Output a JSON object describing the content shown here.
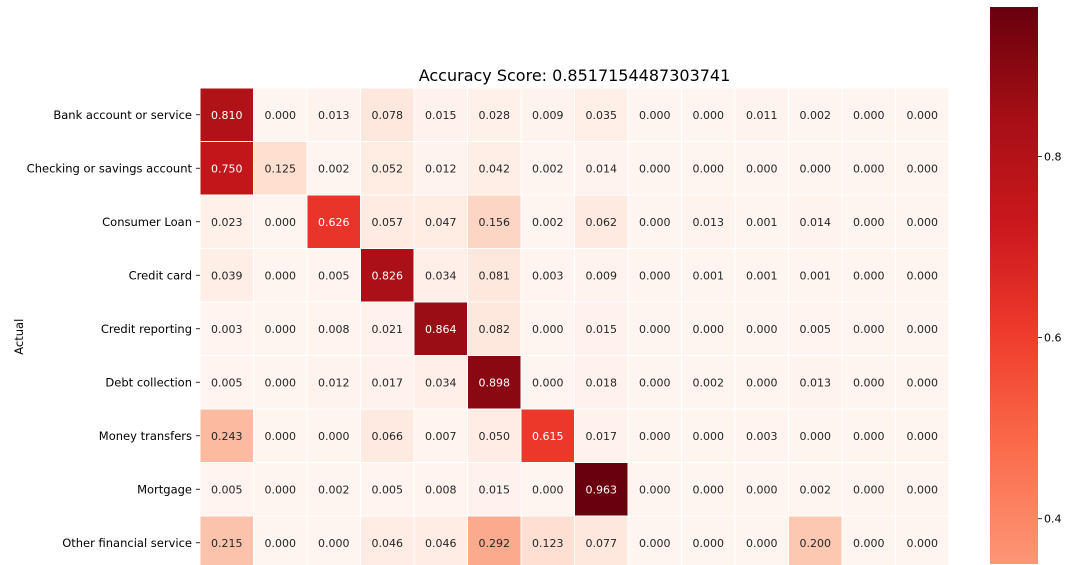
{
  "chart_data": {
    "type": "heatmap",
    "title": "Accuracy Score: 0.8517154487303741",
    "ylabel": "Actual",
    "xlabel": "",
    "row_labels": [
      "Bank account or service",
      "Checking or savings account",
      "Consumer Loan",
      "Credit card",
      "Credit reporting",
      "Debt collection",
      "Money transfers",
      "Mortgage",
      "Other financial service"
    ],
    "values": [
      [
        0.81,
        0.0,
        0.013,
        0.078,
        0.015,
        0.028,
        0.009,
        0.035,
        0.0,
        0.0,
        0.011,
        0.002,
        0.0,
        0.0
      ],
      [
        0.75,
        0.125,
        0.002,
        0.052,
        0.012,
        0.042,
        0.002,
        0.014,
        0.0,
        0.0,
        0.0,
        0.0,
        0.0,
        0.0
      ],
      [
        0.023,
        0.0,
        0.626,
        0.057,
        0.047,
        0.156,
        0.002,
        0.062,
        0.0,
        0.013,
        0.001,
        0.014,
        0.0,
        0.0
      ],
      [
        0.039,
        0.0,
        0.005,
        0.826,
        0.034,
        0.081,
        0.003,
        0.009,
        0.0,
        0.001,
        0.001,
        0.001,
        0.0,
        0.0
      ],
      [
        0.003,
        0.0,
        0.008,
        0.021,
        0.864,
        0.082,
        0.0,
        0.015,
        0.0,
        0.0,
        0.0,
        0.005,
        0.0,
        0.0
      ],
      [
        0.005,
        0.0,
        0.012,
        0.017,
        0.034,
        0.898,
        0.0,
        0.018,
        0.0,
        0.002,
        0.0,
        0.013,
        0.0,
        0.0
      ],
      [
        0.243,
        0.0,
        0.0,
        0.066,
        0.007,
        0.05,
        0.615,
        0.017,
        0.0,
        0.0,
        0.003,
        0.0,
        0.0,
        0.0
      ],
      [
        0.005,
        0.0,
        0.002,
        0.005,
        0.008,
        0.015,
        0.0,
        0.963,
        0.0,
        0.0,
        0.0,
        0.002,
        0.0,
        0.0
      ],
      [
        0.215,
        0.0,
        0.0,
        0.046,
        0.046,
        0.292,
        0.123,
        0.077,
        0.0,
        0.0,
        0.0,
        0.2,
        0.0,
        0.0
      ]
    ],
    "colormap": "Reds",
    "colorbar": {
      "range_shown": [
        0.35,
        0.965
      ],
      "ticks": [
        0.4,
        0.6,
        0.8
      ],
      "tick_labels": [
        "0.4",
        "0.6",
        "0.8"
      ]
    },
    "value_format": "3 decimals",
    "grid": "white cell borders",
    "legend": "colorbar at right"
  }
}
